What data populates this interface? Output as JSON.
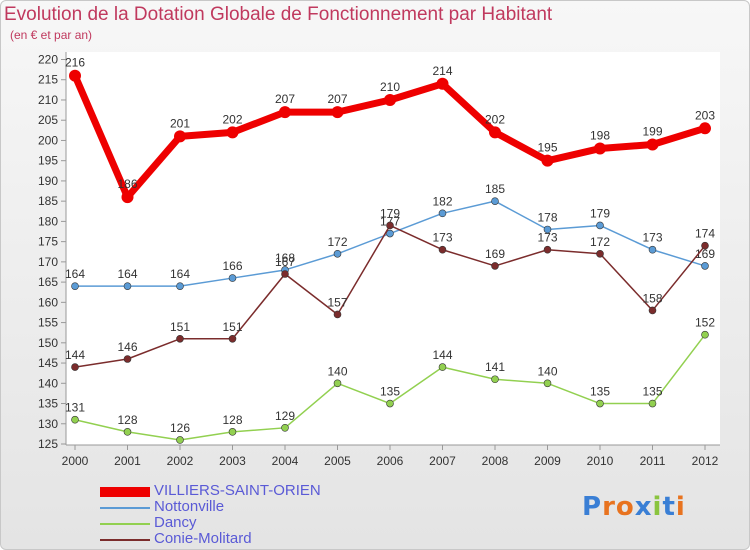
{
  "title": "Evolution de la Dotation Globale de Fonctionnement par Habitant",
  "subtitle": "(en € et par an)",
  "logo_text": "Proxiti",
  "chart_data": {
    "type": "line",
    "x": [
      "2000",
      "2001",
      "2002",
      "2003",
      "2004",
      "2005",
      "2006",
      "2007",
      "2008",
      "2009",
      "2010",
      "2011",
      "2012"
    ],
    "ylim": [
      125,
      220
    ],
    "yticks": [
      125,
      130,
      135,
      140,
      145,
      150,
      155,
      160,
      165,
      170,
      175,
      180,
      185,
      190,
      195,
      200,
      205,
      210,
      215,
      220
    ],
    "grid": false,
    "legend_position": "bottom-left",
    "series": [
      {
        "name": "VILLIERS-SAINT-ORIEN",
        "color": "#ee0000",
        "width": 7,
        "values": [
          216,
          186,
          201,
          202,
          207,
          207,
          210,
          214,
          202,
          195,
          198,
          199,
          203
        ]
      },
      {
        "name": "Nottonville",
        "color": "#5b9bd5",
        "width": 1.5,
        "values": [
          164,
          164,
          164,
          166,
          168,
          172,
          177,
          182,
          185,
          178,
          179,
          173,
          169
        ]
      },
      {
        "name": "Dancy",
        "color": "#92d050",
        "width": 1.5,
        "values": [
          131,
          128,
          126,
          128,
          129,
          140,
          135,
          144,
          141,
          140,
          135,
          135,
          152
        ]
      },
      {
        "name": "Conie-Molitard",
        "color": "#7b2c2c",
        "width": 1.5,
        "values": [
          144,
          146,
          151,
          151,
          167,
          157,
          179,
          173,
          169,
          173,
          172,
          158,
          174
        ]
      }
    ]
  }
}
